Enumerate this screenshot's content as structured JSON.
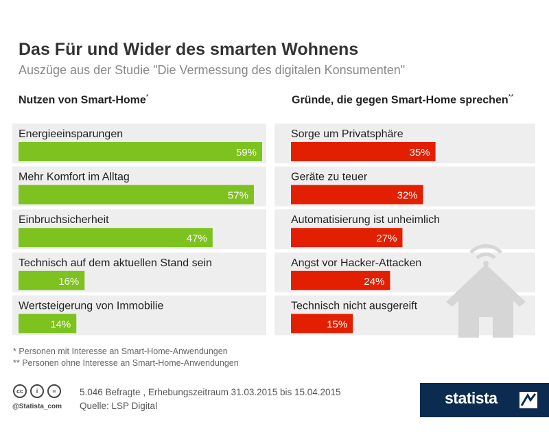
{
  "chart_data": {
    "type": "bar",
    "title": "Das Für und Wider des smarten Wohnens",
    "subtitle": "Auszüge aus der Studie \"Die Vermessung des digitalen Konsumenten\"",
    "colors": {
      "pro": "#7dc21e",
      "contra": "#e21f00",
      "rowbg": "#eeeeee"
    },
    "panels": [
      {
        "header": "Nutzen von Smart-Home",
        "header_mark": "*",
        "categories": [
          "Energieeinsparungen",
          "Mehr Komfort im Alltag",
          "Einbruchsicherheit",
          "Technisch auf dem aktuellen Stand sein",
          "Wertsteigerung von Immobilie"
        ],
        "values": [
          59,
          57,
          47,
          16,
          14
        ],
        "labels": [
          "59%",
          "57%",
          "47%",
          "16%",
          "14%"
        ]
      },
      {
        "header": "Gründe, die gegen Smart-Home sprechen",
        "header_mark": "**",
        "categories": [
          "Sorge um Privatsphäre",
          "Geräte zu teuer",
          "Automatisierung ist unheimlich",
          "Angst vor Hacker-Attacken",
          "Technisch nicht ausgereift"
        ],
        "values": [
          35,
          32,
          27,
          24,
          15
        ],
        "labels": [
          "35%",
          "32%",
          "27%",
          "24%",
          "15%"
        ]
      }
    ],
    "unit": "%"
  },
  "footnotes": {
    "note1": "* Personen mit Interesse an Smart-Home-Anwendungen",
    "note2": "** Personen ohne Interesse an Smart-Home-Anwendungen"
  },
  "source": {
    "line1": "5.046 Befragte , Erhebungszeitraum 31.03.2015 bis 15.04.2015",
    "line2": "Quelle: LSP Digital"
  },
  "license": {
    "cc": "cc",
    "by": "i",
    "nd": "=",
    "handle": "@Statista_com"
  },
  "brand": {
    "name": "statista"
  }
}
